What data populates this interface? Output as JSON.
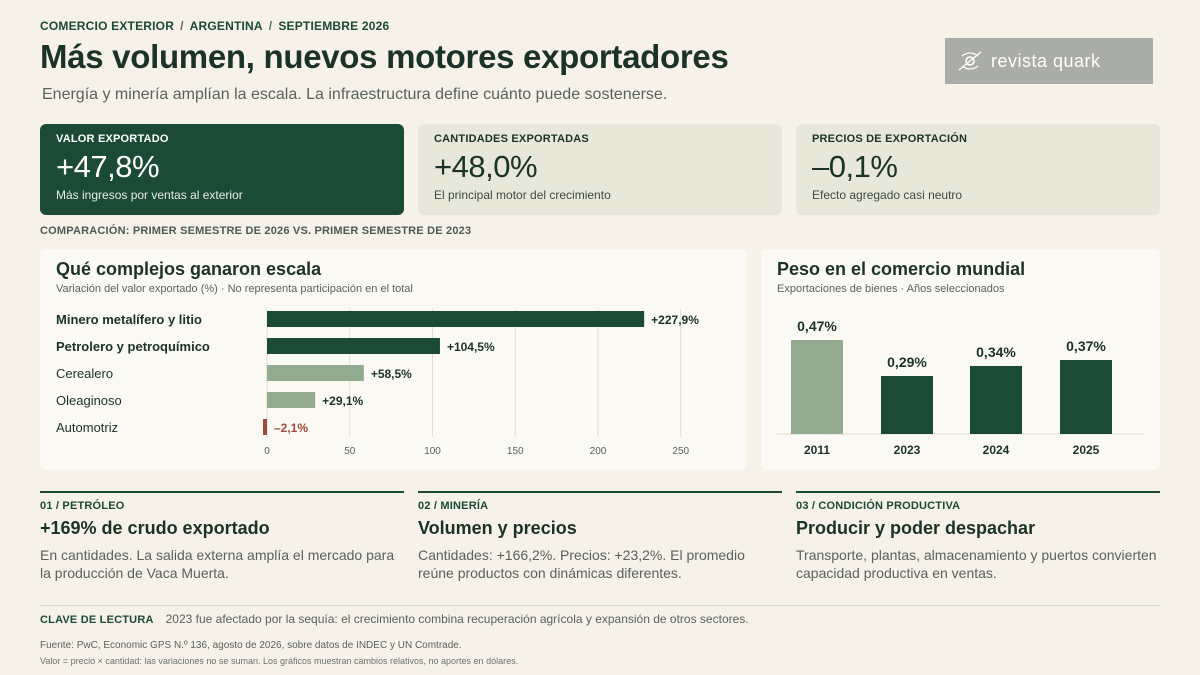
{
  "header": {
    "kicker": [
      "COMERCIO EXTERIOR",
      "ARGENTINA",
      "SEPTIEMBRE 2026"
    ],
    "kicker_sep": "/",
    "title": "Más volumen, nuevos motores exportadores",
    "subtitle": "Energía y minería amplían la escala. La infraestructura define cuánto puede sostenerse.",
    "brand": "revista quark"
  },
  "kpis": [
    {
      "label": "VALOR EXPORTADO",
      "value": "+47,8%",
      "note": "Más ingresos por ventas al exterior"
    },
    {
      "label": "CANTIDADES EXPORTADAS",
      "value": "+48,0%",
      "note": "El principal motor del crecimiento"
    },
    {
      "label": "PRECIOS DE EXPORTACIÓN",
      "value": "–0,1%",
      "note": "Efecto agregado casi neutro"
    }
  ],
  "comparison": "COMPARACIÓN: PRIMER SEMESTRE DE 2026 VS. PRIMER SEMESTRE DE 2023",
  "colors": {
    "dark": "#1b4a35",
    "light": "#93ab8e",
    "negative": "#a3463b",
    "grid": "#dcdcd4"
  },
  "chart_data": [
    {
      "type": "bar",
      "orientation": "horizontal",
      "title": "Qué complejos ganaron escala",
      "subtitle": "Variación del valor exportado (%) · No representa participación en el total",
      "categories": [
        "Minero metalífero y litio",
        "Petrolero y petroquímico",
        "Cerealero",
        "Oleaginoso",
        "Automotriz"
      ],
      "values": [
        227.9,
        104.5,
        58.5,
        29.1,
        -2.1
      ],
      "labels": [
        "+227,9%",
        "+104,5%",
        "+58,5%",
        "+29,1%",
        "–2,1%"
      ],
      "highlight": [
        true,
        true,
        false,
        false,
        false
      ],
      "xlim": [
        0,
        250
      ],
      "xticks": [
        0,
        50,
        100,
        150,
        200,
        250
      ],
      "grid": true
    },
    {
      "type": "bar",
      "orientation": "vertical",
      "title": "Peso en el comercio mundial",
      "subtitle": "Exportaciones de bienes · Años seleccionados",
      "categories": [
        "2011",
        "2023",
        "2024",
        "2025"
      ],
      "values": [
        0.47,
        0.29,
        0.34,
        0.37
      ],
      "labels": [
        "0,47%",
        "0,29%",
        "0,34%",
        "0,37%"
      ],
      "highlight": [
        false,
        true,
        true,
        true
      ],
      "ylim": [
        0,
        0.5
      ]
    }
  ],
  "sections": [
    {
      "num": "01 / PETRÓLEO",
      "head": "+169% de crudo exportado",
      "body": "En cantidades. La salida externa amplía el mercado para la producción de Vaca Muerta."
    },
    {
      "num": "02 / MINERÍA",
      "head": "Volumen y precios",
      "body": "Cantidades: +166,2%. Precios: +23,2%. El promedio reúne productos con dinámicas diferentes."
    },
    {
      "num": "03 / CONDICIÓN PRODUCTIVA",
      "head": "Producir y poder despachar",
      "body": "Transporte, plantas, almacenamiento y puertos convierten capacidad productiva en ventas."
    }
  ],
  "footer": {
    "key_label": "CLAVE DE LECTURA",
    "key_text": "2023 fue afectado por la sequía: el crecimiento combina recuperación agrícola y expansión de otros sectores.",
    "source": "Fuente: PwC, Economic GPS N.º 136, agosto de 2026, sobre datos de INDEC y UN Comtrade.",
    "note": "Valor = precio × cantidad: las variaciones no se suman. Los gráficos muestran cambios relativos, no aportes en dólares."
  }
}
